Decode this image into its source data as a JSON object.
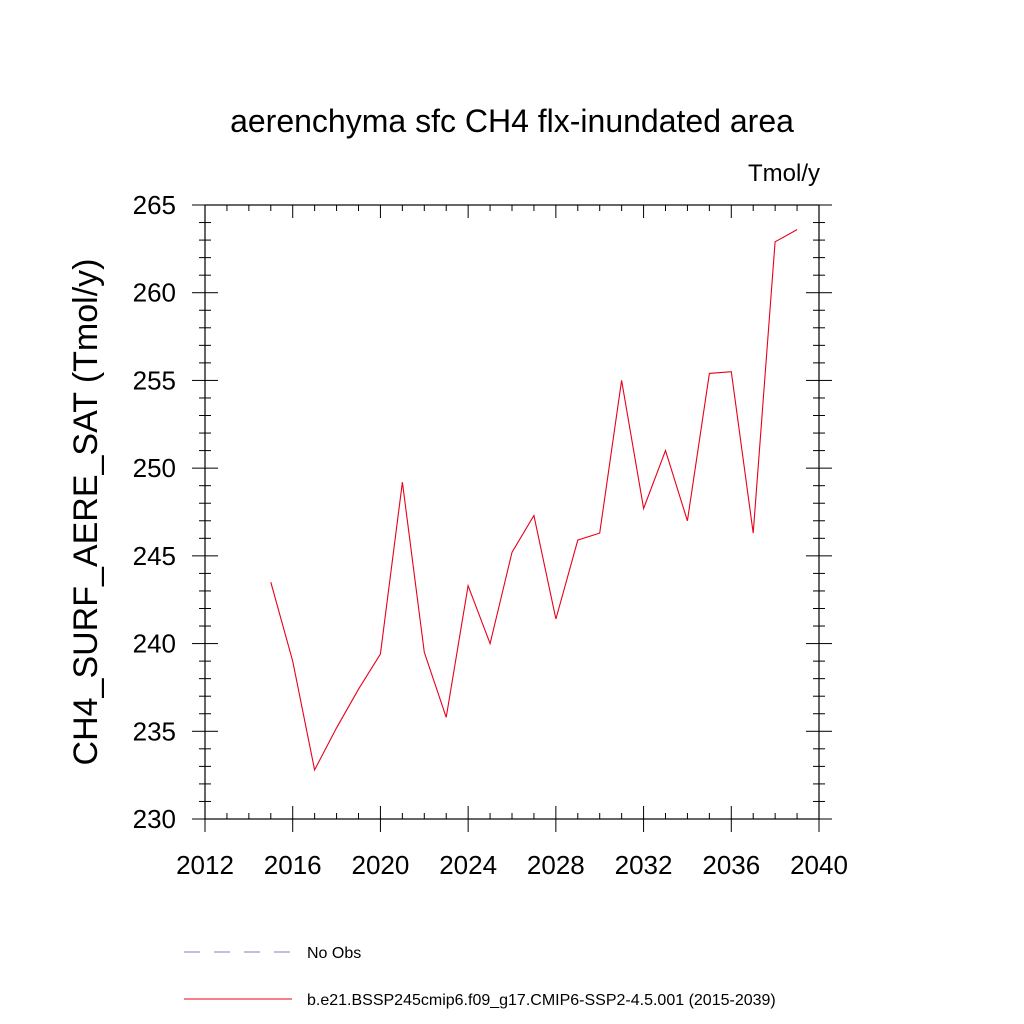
{
  "chart_data": {
    "type": "line",
    "title": "aerenchyma sfc CH4 flx-inundated area",
    "units": "Tmol/y",
    "ylabel": "CH4_SURF_AERE_SAT  (Tmol/y)",
    "xlabel": "",
    "xlim": [
      2012,
      2040
    ],
    "ylim": [
      230,
      265
    ],
    "x_ticks": [
      2012,
      2016,
      2020,
      2024,
      2028,
      2032,
      2036,
      2040
    ],
    "y_ticks": [
      230,
      235,
      240,
      245,
      250,
      255,
      260,
      265
    ],
    "x_tick_labels": [
      "2012",
      "2016",
      "2020",
      "2024",
      "2028",
      "2032",
      "2036",
      "2040"
    ],
    "y_tick_labels": [
      "230",
      "235",
      "240",
      "245",
      "250",
      "255",
      "260",
      "265"
    ],
    "grid": false,
    "legend_position": "bottom",
    "series": [
      {
        "name": "No Obs",
        "color": "#7f7fbf",
        "dash": "dashed",
        "x": [],
        "y": []
      },
      {
        "name": "b.e21.BSSP245cmip6.f09_g17.CMIP6-SSP2-4.5.001 (2015-2039)",
        "color": "#e8001a",
        "dash": "solid",
        "x": [
          2015,
          2016,
          2017,
          2018,
          2019,
          2020,
          2021,
          2022,
          2023,
          2024,
          2025,
          2026,
          2027,
          2028,
          2029,
          2030,
          2031,
          2032,
          2033,
          2034,
          2035,
          2036,
          2037,
          2038,
          2039
        ],
        "y": [
          243.5,
          239.0,
          232.8,
          235.2,
          237.4,
          239.4,
          249.2,
          239.5,
          235.8,
          243.3,
          240.0,
          245.2,
          247.3,
          241.4,
          245.9,
          246.3,
          255.0,
          247.7,
          251.0,
          247.0,
          255.4,
          255.5,
          246.3,
          262.9,
          263.6
        ]
      }
    ]
  }
}
